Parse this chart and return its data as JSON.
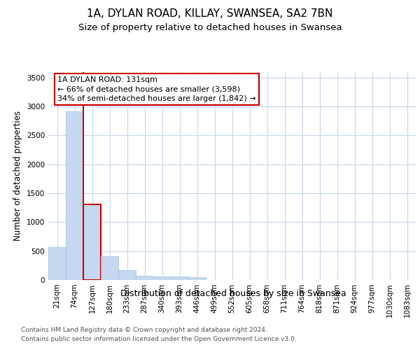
{
  "title_line1": "1A, DYLAN ROAD, KILLAY, SWANSEA, SA2 7BN",
  "title_line2": "Size of property relative to detached houses in Swansea",
  "xlabel": "Distribution of detached houses by size in Swansea",
  "ylabel": "Number of detached properties",
  "bar_color": "#c5d8ef",
  "bar_edge_color": "#a0c0e0",
  "highlight_color": "#cc0000",
  "background_color": "#ffffff",
  "grid_color": "#c8d8ea",
  "categories": [
    "21sqm",
    "74sqm",
    "127sqm",
    "180sqm",
    "233sqm",
    "287sqm",
    "340sqm",
    "393sqm",
    "446sqm",
    "499sqm",
    "552sqm",
    "605sqm",
    "658sqm",
    "711sqm",
    "764sqm",
    "818sqm",
    "871sqm",
    "924sqm",
    "977sqm",
    "1030sqm",
    "1083sqm"
  ],
  "values": [
    570,
    2920,
    1310,
    415,
    170,
    75,
    60,
    55,
    50,
    0,
    0,
    0,
    0,
    0,
    0,
    0,
    0,
    0,
    0,
    0,
    0
  ],
  "property_label": "1A DYLAN ROAD: 131sqm",
  "pct_smaller": 66,
  "n_smaller": 3598,
  "pct_larger": 34,
  "n_larger": 1842,
  "highlight_bar_index": 2,
  "red_line_x": 1.5,
  "ylim": [
    0,
    3600
  ],
  "yticks": [
    0,
    500,
    1000,
    1500,
    2000,
    2500,
    3000,
    3500
  ],
  "footer_line1": "Contains HM Land Registry data © Crown copyright and database right 2024.",
  "footer_line2": "Contains public sector information licensed under the Open Government Licence v3.0.",
  "title_fontsize": 11,
  "subtitle_fontsize": 9.5,
  "tick_fontsize": 7.5,
  "ylabel_fontsize": 8.5,
  "xlabel_fontsize": 9,
  "annot_fontsize": 8,
  "footer_fontsize": 6.5
}
